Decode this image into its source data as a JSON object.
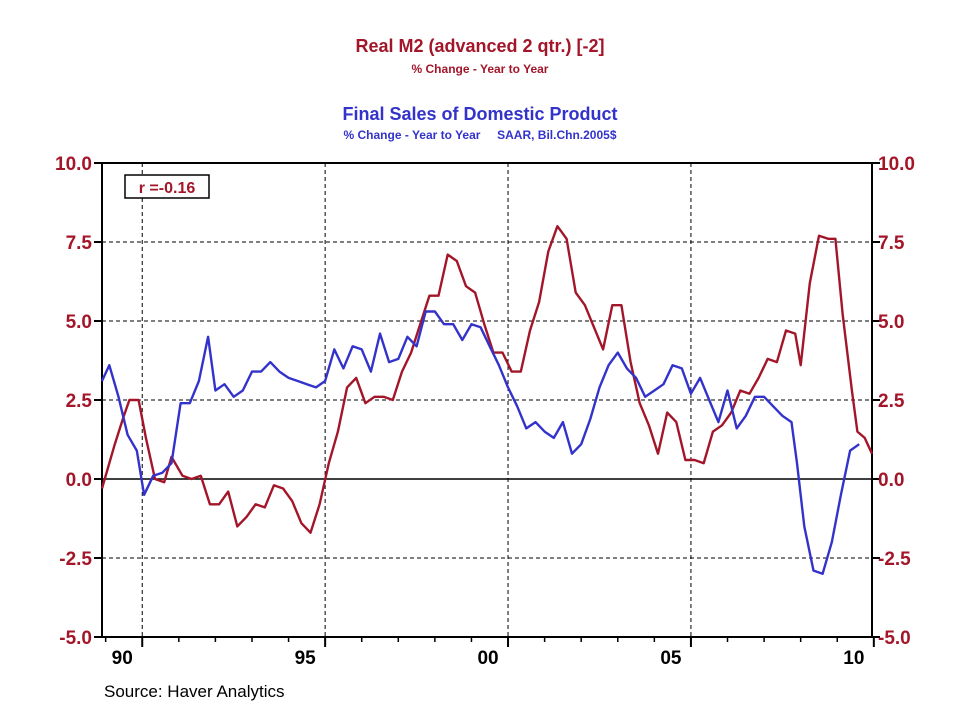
{
  "colors": {
    "series_red": "#a3162a",
    "series_blue": "#3333cc",
    "grid": "#000000",
    "axis": "#000000",
    "background": "#ffffff"
  },
  "chart_data": {
    "type": "line",
    "titles": {
      "red_title": "Real M2 (advanced 2 qtr.)  [-2]",
      "red_subtitle": "% Change - Year to Year",
      "blue_title": "Final Sales of Domestic Product",
      "blue_subtitle": "% Change - Year to Year     SAAR, Bil.Chn.2005$"
    },
    "annotation": "r =-0.16",
    "source": "Source: Haver Analytics",
    "x_ticks": [
      {
        "value": 1990,
        "label": "90"
      },
      {
        "value": 1995,
        "label": "95"
      },
      {
        "value": 2000,
        "label": "00"
      },
      {
        "value": 2005,
        "label": "05"
      },
      {
        "value": 2010,
        "label": "10"
      }
    ],
    "xlim": [
      1988.9,
      2009.95
    ],
    "ylim": [
      -5.0,
      10.0
    ],
    "y_ticks": [
      -5.0,
      -2.5,
      0.0,
      2.5,
      5.0,
      7.5,
      10.0
    ],
    "y_tick_labels": [
      "-5.0",
      "-2.5",
      "0.0",
      "2.5",
      "5.0",
      "7.5",
      "10.0"
    ],
    "grid": true,
    "series": [
      {
        "name": "Real M2 (advanced 2 qtr.)  [-2]",
        "color": "#a3162a",
        "points": [
          [
            1988.9,
            -0.3
          ],
          [
            1989.25,
            1.1
          ],
          [
            1989.5,
            2.0
          ],
          [
            1989.65,
            2.5
          ],
          [
            1989.9,
            2.5
          ],
          [
            1990.1,
            1.3
          ],
          [
            1990.35,
            0.0
          ],
          [
            1990.6,
            -0.1
          ],
          [
            1990.8,
            0.7
          ],
          [
            1991.1,
            0.1
          ],
          [
            1991.35,
            0.0
          ],
          [
            1991.6,
            0.1
          ],
          [
            1991.85,
            -0.8
          ],
          [
            1992.1,
            -0.8
          ],
          [
            1992.35,
            -0.4
          ],
          [
            1992.6,
            -1.5
          ],
          [
            1992.85,
            -1.2
          ],
          [
            1993.1,
            -0.8
          ],
          [
            1993.35,
            -0.9
          ],
          [
            1993.6,
            -0.2
          ],
          [
            1993.85,
            -0.3
          ],
          [
            1994.1,
            -0.7
          ],
          [
            1994.35,
            -1.4
          ],
          [
            1994.6,
            -1.7
          ],
          [
            1994.85,
            -0.8
          ],
          [
            1995.1,
            0.5
          ],
          [
            1995.35,
            1.5
          ],
          [
            1995.6,
            2.9
          ],
          [
            1995.85,
            3.2
          ],
          [
            1996.1,
            2.4
          ],
          [
            1996.35,
            2.6
          ],
          [
            1996.6,
            2.6
          ],
          [
            1996.85,
            2.5
          ],
          [
            1997.1,
            3.4
          ],
          [
            1997.35,
            4.0
          ],
          [
            1997.6,
            4.9
          ],
          [
            1997.85,
            5.8
          ],
          [
            1998.1,
            5.8
          ],
          [
            1998.35,
            7.1
          ],
          [
            1998.6,
            6.9
          ],
          [
            1998.85,
            6.1
          ],
          [
            1999.1,
            5.9
          ],
          [
            1999.35,
            4.9
          ],
          [
            1999.6,
            4.0
          ],
          [
            1999.85,
            4.0
          ],
          [
            2000.1,
            3.4
          ],
          [
            2000.35,
            3.4
          ],
          [
            2000.6,
            4.7
          ],
          [
            2000.85,
            5.6
          ],
          [
            2001.1,
            7.2
          ],
          [
            2001.35,
            8.0
          ],
          [
            2001.6,
            7.6
          ],
          [
            2001.85,
            5.9
          ],
          [
            2002.1,
            5.5
          ],
          [
            2002.35,
            4.8
          ],
          [
            2002.6,
            4.1
          ],
          [
            2002.85,
            5.5
          ],
          [
            2003.1,
            5.5
          ],
          [
            2003.35,
            3.7
          ],
          [
            2003.6,
            2.4
          ],
          [
            2003.85,
            1.7
          ],
          [
            2004.1,
            0.8
          ],
          [
            2004.35,
            2.1
          ],
          [
            2004.6,
            1.8
          ],
          [
            2004.85,
            0.6
          ],
          [
            2005.1,
            0.6
          ],
          [
            2005.35,
            0.5
          ],
          [
            2005.6,
            1.5
          ],
          [
            2005.85,
            1.7
          ],
          [
            2006.1,
            2.1
          ],
          [
            2006.35,
            2.8
          ],
          [
            2006.6,
            2.7
          ],
          [
            2006.85,
            3.2
          ],
          [
            2007.1,
            3.8
          ],
          [
            2007.35,
            3.7
          ],
          [
            2007.6,
            4.7
          ],
          [
            2007.85,
            4.6
          ],
          [
            2008.0,
            3.6
          ],
          [
            2008.25,
            6.2
          ],
          [
            2008.5,
            7.7
          ],
          [
            2008.75,
            7.6
          ],
          [
            2008.95,
            7.6
          ],
          [
            2009.15,
            5.2
          ],
          [
            2009.4,
            2.8
          ],
          [
            2009.55,
            1.5
          ],
          [
            2009.75,
            1.3
          ],
          [
            2009.95,
            0.8
          ]
        ]
      },
      {
        "name": "Final Sales of Domestic Product",
        "color": "#3333cc",
        "points": [
          [
            1988.9,
            3.1
          ],
          [
            1989.1,
            3.6
          ],
          [
            1989.35,
            2.6
          ],
          [
            1989.6,
            1.4
          ],
          [
            1989.85,
            0.9
          ],
          [
            1990.05,
            -0.5
          ],
          [
            1990.3,
            0.1
          ],
          [
            1990.55,
            0.2
          ],
          [
            1990.8,
            0.5
          ],
          [
            1991.05,
            2.4
          ],
          [
            1991.3,
            2.4
          ],
          [
            1991.55,
            3.1
          ],
          [
            1991.8,
            4.5
          ],
          [
            1992.0,
            2.8
          ],
          [
            1992.25,
            3.0
          ],
          [
            1992.5,
            2.6
          ],
          [
            1992.75,
            2.8
          ],
          [
            1993.0,
            3.4
          ],
          [
            1993.25,
            3.4
          ],
          [
            1993.5,
            3.7
          ],
          [
            1993.75,
            3.4
          ],
          [
            1994.0,
            3.2
          ],
          [
            1994.25,
            3.1
          ],
          [
            1994.5,
            3.0
          ],
          [
            1994.75,
            2.9
          ],
          [
            1995.0,
            3.1
          ],
          [
            1995.25,
            4.1
          ],
          [
            1995.5,
            3.5
          ],
          [
            1995.75,
            4.2
          ],
          [
            1996.0,
            4.1
          ],
          [
            1996.25,
            3.4
          ],
          [
            1996.5,
            4.6
          ],
          [
            1996.75,
            3.7
          ],
          [
            1997.0,
            3.8
          ],
          [
            1997.25,
            4.5
          ],
          [
            1997.5,
            4.2
          ],
          [
            1997.75,
            5.3
          ],
          [
            1998.0,
            5.3
          ],
          [
            1998.25,
            4.9
          ],
          [
            1998.5,
            4.9
          ],
          [
            1998.75,
            4.4
          ],
          [
            1999.0,
            4.9
          ],
          [
            1999.25,
            4.8
          ],
          [
            1999.5,
            4.2
          ],
          [
            1999.75,
            3.6
          ],
          [
            2000.0,
            2.9
          ],
          [
            2000.25,
            2.3
          ],
          [
            2000.5,
            1.6
          ],
          [
            2000.75,
            1.8
          ],
          [
            2001.0,
            1.5
          ],
          [
            2001.25,
            1.3
          ],
          [
            2001.5,
            1.8
          ],
          [
            2001.75,
            0.8
          ],
          [
            2002.0,
            1.1
          ],
          [
            2002.25,
            1.9
          ],
          [
            2002.5,
            2.9
          ],
          [
            2002.75,
            3.6
          ],
          [
            2003.0,
            4.0
          ],
          [
            2003.25,
            3.5
          ],
          [
            2003.5,
            3.2
          ],
          [
            2003.75,
            2.6
          ],
          [
            2004.0,
            2.8
          ],
          [
            2004.25,
            3.0
          ],
          [
            2004.5,
            3.6
          ],
          [
            2004.75,
            3.5
          ],
          [
            2005.0,
            2.7
          ],
          [
            2005.25,
            3.2
          ],
          [
            2005.5,
            2.5
          ],
          [
            2005.75,
            1.8
          ],
          [
            2006.0,
            2.8
          ],
          [
            2006.25,
            1.6
          ],
          [
            2006.5,
            2.0
          ],
          [
            2006.75,
            2.6
          ],
          [
            2007.0,
            2.6
          ],
          [
            2007.25,
            2.3
          ],
          [
            2007.5,
            2.0
          ],
          [
            2007.75,
            1.8
          ],
          [
            2007.9,
            0.5
          ],
          [
            2008.1,
            -1.5
          ],
          [
            2008.35,
            -2.9
          ],
          [
            2008.6,
            -3.0
          ],
          [
            2008.85,
            -2.0
          ],
          [
            2009.1,
            -0.5
          ],
          [
            2009.35,
            0.9
          ],
          [
            2009.6,
            1.1
          ]
        ]
      }
    ]
  }
}
